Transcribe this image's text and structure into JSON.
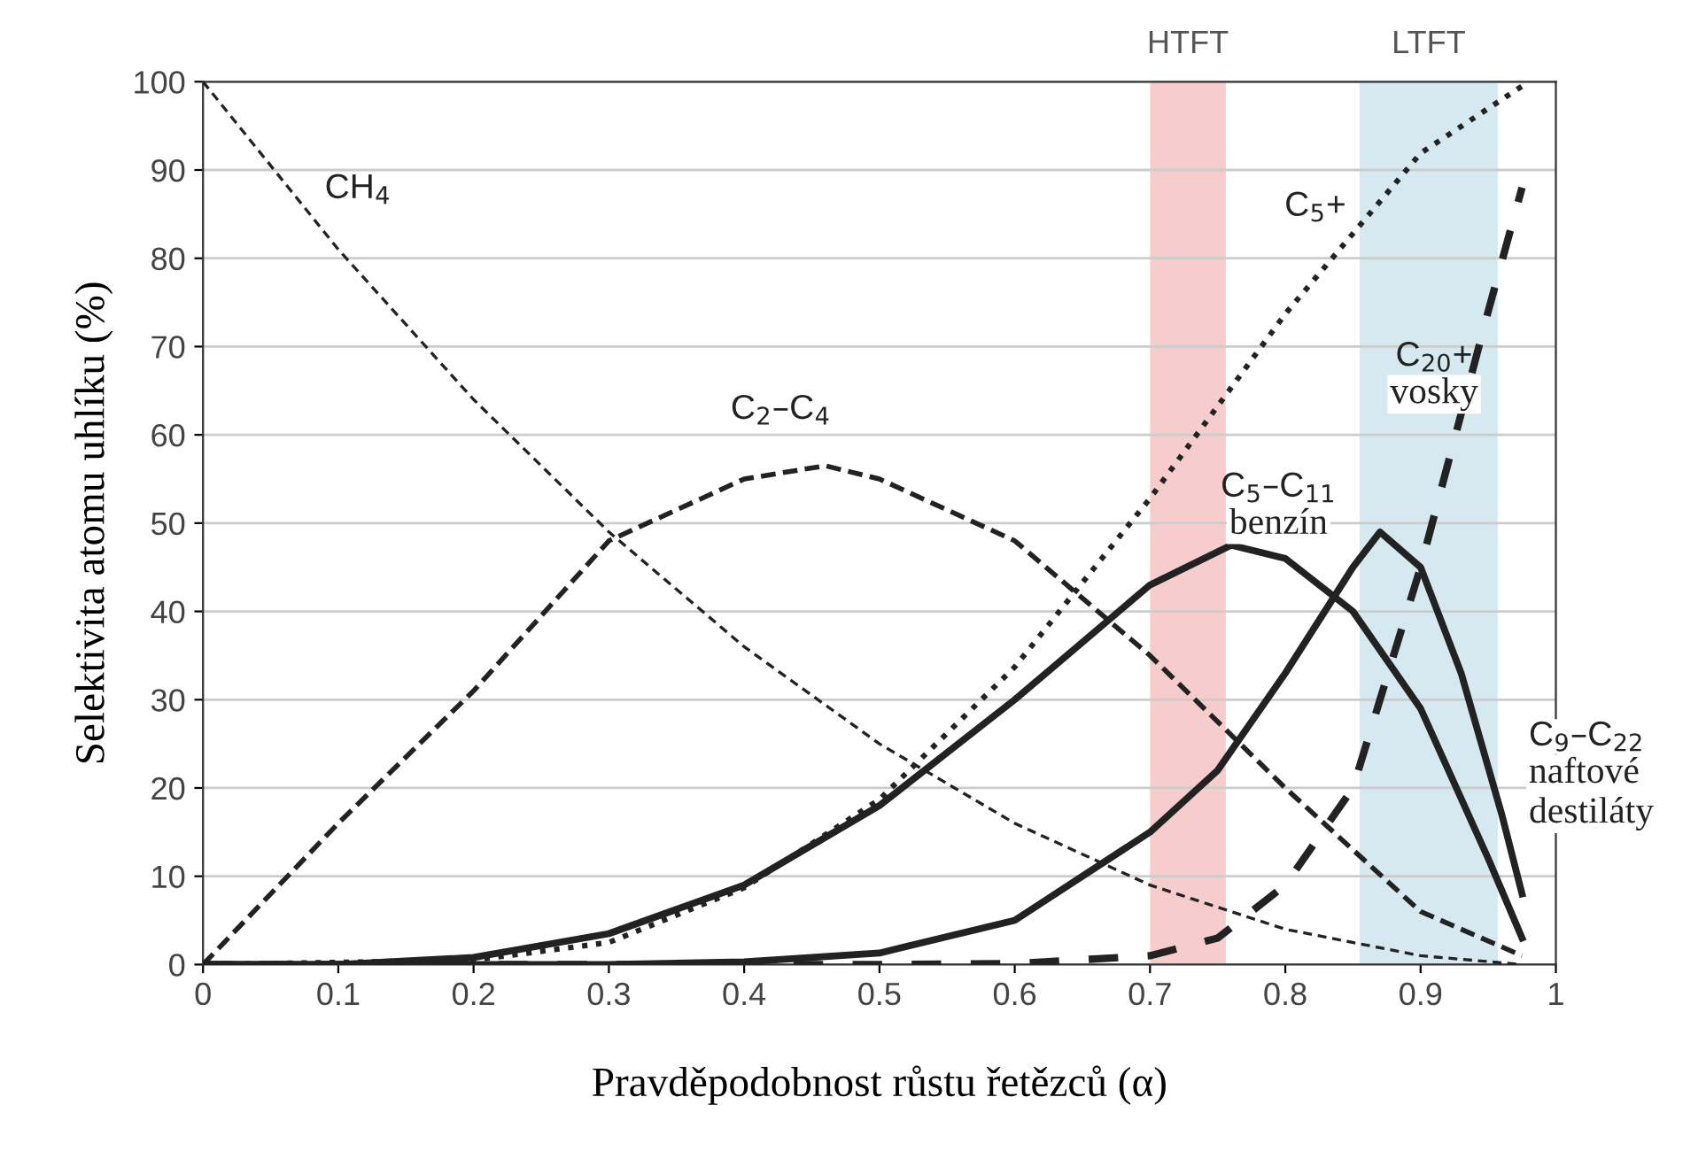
{
  "chart_data": {
    "type": "line",
    "xlabel": "Pravděpodobnost růstu řetězců (α)",
    "ylabel": "Selektivita atomu uhlíku (%)",
    "xlim": [
      0,
      1
    ],
    "xticks": [
      0,
      0.1,
      0.2,
      0.3,
      0.4,
      0.5,
      0.6,
      0.7,
      0.8,
      0.9,
      1
    ],
    "ylim": [
      0,
      100
    ],
    "yticks": [
      0,
      10,
      20,
      30,
      40,
      50,
      60,
      70,
      80,
      90,
      100
    ],
    "grid": "y",
    "legend": false,
    "marker": "none",
    "bands": [
      {
        "axis": "x",
        "from": 0.7,
        "to": 0.756,
        "label": "HTFT",
        "color": "#f7cccc"
      },
      {
        "axis": "x",
        "from": 0.855,
        "to": 0.957,
        "label": "LTFT",
        "color": "#d6e9f1"
      }
    ],
    "series": [
      {
        "name": "CH$_{4}$",
        "color": "#222222",
        "line_style": "dashed",
        "x": [
          0,
          0.1,
          0.2,
          0.3,
          0.4,
          0.5,
          0.6,
          0.7,
          0.8,
          0.9,
          0.975
        ],
        "values": [
          100,
          81,
          64,
          49,
          36,
          25,
          16,
          9,
          4,
          1,
          0
        ]
      },
      {
        "name": "C$_{2}$–C$_{4}$",
        "color": "#222222",
        "line_style": "dashed",
        "x": [
          0,
          0.1,
          0.2,
          0.3,
          0.4,
          0.46,
          0.5,
          0.6,
          0.7,
          0.8,
          0.9,
          0.975
        ],
        "values": [
          0,
          16,
          31,
          48,
          55,
          56.5,
          55,
          48,
          35,
          20,
          6,
          1
        ]
      },
      {
        "name": "C$_{5}$+",
        "color": "#222222",
        "line_style": "dotted",
        "x": [
          0,
          0.2,
          0.3,
          0.4,
          0.5,
          0.6,
          0.7,
          0.8,
          0.9,
          0.975
        ],
        "values": [
          0,
          0.5,
          2.5,
          8.7,
          18.7,
          33.7,
          52.8,
          73.7,
          91.9,
          99.5
        ]
      },
      {
        "name": "C$_{5}$–C$_{11}$\nbenzín",
        "color": "#222222",
        "line_style": "solid",
        "x": [
          0,
          0.1,
          0.2,
          0.3,
          0.4,
          0.5,
          0.6,
          0.7,
          0.76,
          0.8,
          0.85,
          0.9,
          0.95,
          0.975
        ],
        "values": [
          0,
          0,
          0.8,
          3.5,
          9,
          18,
          30,
          43,
          47.5,
          46,
          40,
          29,
          12,
          3
        ]
      },
      {
        "name": "C$_{9}$–C$_{22}$\nnaftové\ndestiláty",
        "color": "#222222",
        "line_style": "solid",
        "x": [
          0,
          0.3,
          0.4,
          0.5,
          0.6,
          0.7,
          0.75,
          0.8,
          0.85,
          0.87,
          0.9,
          0.93,
          0.96,
          0.975
        ],
        "values": [
          0,
          0,
          0.3,
          1.3,
          5,
          15,
          22,
          33,
          45,
          49,
          45,
          33,
          17,
          8
        ]
      },
      {
        "name": "C$_{20}$+\nvosky",
        "color": "#222222",
        "line_style": "dashed",
        "x": [
          0,
          0.5,
          0.6,
          0.7,
          0.75,
          0.8,
          0.85,
          0.9,
          0.95,
          0.975
        ],
        "values": [
          0,
          0,
          0.1,
          1,
          3,
          9,
          20,
          45,
          74,
          88
        ]
      }
    ]
  }
}
